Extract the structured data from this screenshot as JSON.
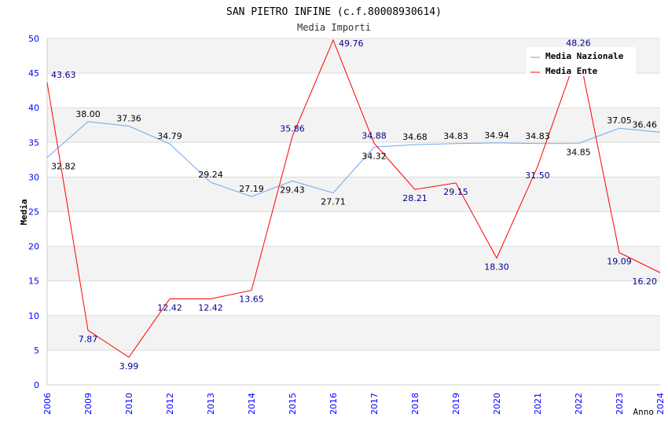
{
  "chart_data": {
    "type": "line",
    "title": "SAN PIETRO INFINE (c.f.80008930614)",
    "subtitle": "Media Importi",
    "xlabel": "Anno",
    "ylabel": "Media",
    "ylim": [
      0,
      50
    ],
    "yticks": [
      0,
      5,
      10,
      15,
      20,
      25,
      30,
      35,
      40,
      45,
      50
    ],
    "grid": true,
    "legend_position": "top-right",
    "categories": [
      "2006",
      "2009",
      "2010",
      "2012",
      "2013",
      "2014",
      "2015",
      "2016",
      "2017",
      "2018",
      "2019",
      "2020",
      "2021",
      "2022",
      "2023",
      "2024"
    ],
    "series": [
      {
        "name": "Media Nazionale",
        "color": "#6aa8f0",
        "label_color": "#000000",
        "values": [
          32.82,
          38.0,
          37.36,
          34.79,
          29.24,
          27.19,
          29.43,
          27.71,
          34.32,
          34.68,
          34.83,
          34.94,
          34.83,
          34.85,
          37.05,
          36.46
        ]
      },
      {
        "name": "Media Ente",
        "color": "#ff0000",
        "label_color": "#00008b",
        "values": [
          43.63,
          7.87,
          3.99,
          12.42,
          12.42,
          13.65,
          35.86,
          49.76,
          34.88,
          28.21,
          29.15,
          18.3,
          31.5,
          48.26,
          19.09,
          16.2
        ]
      }
    ]
  }
}
